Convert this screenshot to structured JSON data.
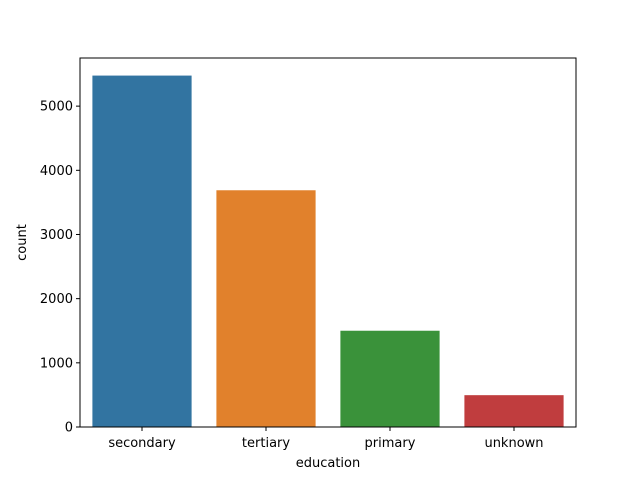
{
  "chart_data": {
    "type": "bar",
    "title": "",
    "xlabel": "education",
    "ylabel": "count",
    "categories": [
      "secondary",
      "tertiary",
      "primary",
      "unknown"
    ],
    "values": [
      5476,
      3689,
      1500,
      496
    ],
    "colors": [
      "#3274a1",
      "#e1812c",
      "#3a923a",
      "#c03d3e"
    ],
    "ylim": [
      0,
      5750
    ],
    "yticks": [
      0,
      1000,
      2000,
      3000,
      4000,
      5000
    ],
    "grid": false,
    "legend": "none"
  }
}
